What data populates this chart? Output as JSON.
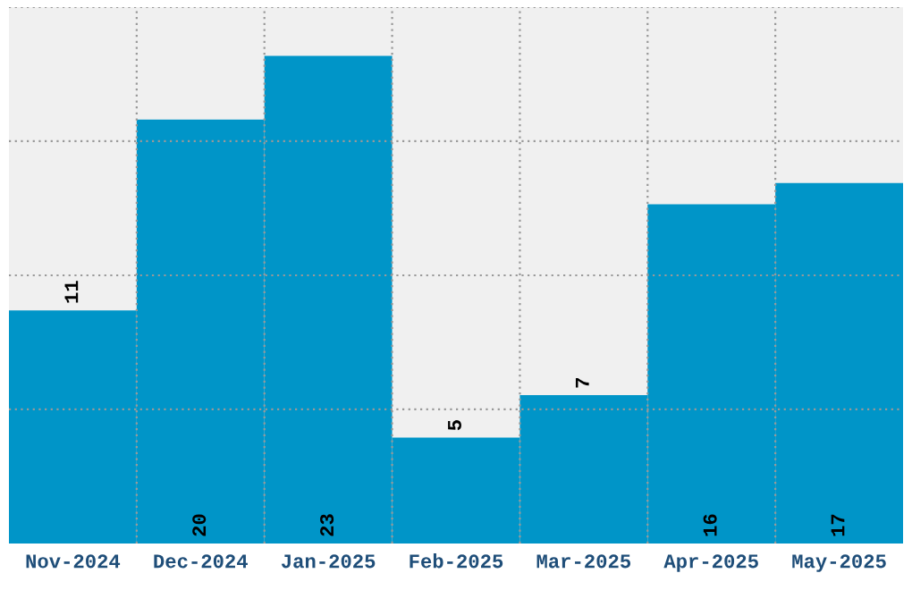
{
  "chart_data": {
    "type": "bar",
    "categories": [
      "Nov-2024",
      "Dec-2024",
      "Jan-2025",
      "Feb-2025",
      "Mar-2025",
      "Apr-2025",
      "May-2025"
    ],
    "values": [
      11,
      20,
      23,
      5,
      7,
      16,
      17
    ],
    "color": "#0095c8",
    "data_labels": true,
    "ylim": [
      0,
      25.3
    ],
    "yticks": [
      {
        "value": 6.33,
        "label": null
      },
      {
        "value": 12.65,
        "label": null
      },
      {
        "value": 18.98,
        "label": null
      },
      {
        "value": 25.3,
        "label": null
      }
    ],
    "tick_labels": "x",
    "grid": true
  }
}
